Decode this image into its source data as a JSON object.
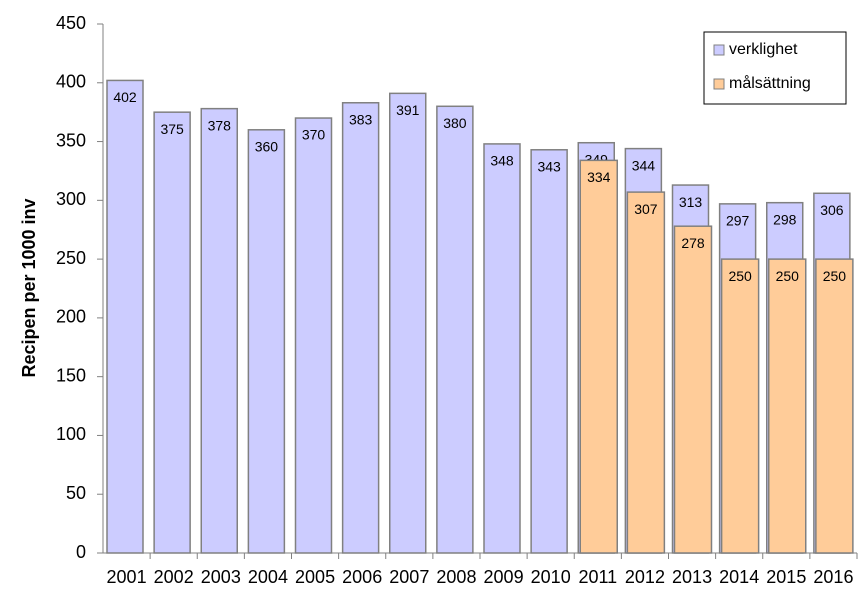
{
  "chart_data": {
    "type": "bar",
    "y_label": "Recipen per 1000 inv",
    "categories": [
      "2001",
      "2002",
      "2003",
      "2004",
      "2005",
      "2006",
      "2007",
      "2008",
      "2009",
      "2010",
      "2011",
      "2012",
      "2013",
      "2014",
      "2015",
      "2016"
    ],
    "series": [
      {
        "name": "verklighet",
        "color": "#ccccff",
        "values": [
          402,
          375,
          378,
          360,
          370,
          383,
          391,
          380,
          348,
          343,
          349,
          344,
          313,
          297,
          298,
          306
        ]
      },
      {
        "name": "målsättning",
        "color": "#ffcc99",
        "values": [
          null,
          null,
          null,
          null,
          null,
          null,
          null,
          null,
          null,
          null,
          334,
          307,
          278,
          250,
          250,
          250
        ]
      }
    ],
    "ylim": [
      0,
      450
    ],
    "yticks": [
      0,
      50,
      100,
      150,
      200,
      250,
      300,
      350,
      400,
      450
    ],
    "legend": "top-right"
  }
}
